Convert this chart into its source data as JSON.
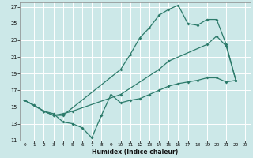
{
  "xlabel": "Humidex (Indice chaleur)",
  "bg_color": "#cce8e8",
  "grid_color": "#ffffff",
  "line_color": "#2d7b6b",
  "xlim": [
    -0.5,
    23.5
  ],
  "ylim": [
    11,
    27.5
  ],
  "yticks": [
    11,
    13,
    15,
    17,
    19,
    21,
    23,
    25,
    27
  ],
  "xticks": [
    0,
    1,
    2,
    3,
    4,
    5,
    6,
    7,
    8,
    9,
    10,
    11,
    12,
    13,
    14,
    15,
    16,
    17,
    18,
    19,
    20,
    21,
    22,
    23
  ],
  "line1_x": [
    0,
    1,
    2,
    3,
    4,
    10,
    11,
    12,
    13,
    14,
    15,
    16,
    17,
    18,
    19,
    20,
    21,
    22
  ],
  "line1_y": [
    15.8,
    15.2,
    14.5,
    14.0,
    14.0,
    19.5,
    21.3,
    23.3,
    24.5,
    26.0,
    26.7,
    27.2,
    25.0,
    24.8,
    25.5,
    25.5,
    22.5,
    18.2
  ],
  "line2_x": [
    0,
    2,
    3,
    4,
    5,
    10,
    14,
    15,
    19,
    20,
    21,
    22
  ],
  "line2_y": [
    15.8,
    14.5,
    14.0,
    14.2,
    14.5,
    16.5,
    19.5,
    20.5,
    22.5,
    23.5,
    22.3,
    18.2
  ],
  "line3_x": [
    0,
    1,
    2,
    3,
    4,
    5,
    6,
    7,
    8,
    9,
    10,
    11,
    12,
    13,
    14,
    15,
    16,
    17,
    18,
    19,
    20,
    21,
    22
  ],
  "line3_y": [
    15.8,
    15.2,
    14.5,
    14.2,
    13.2,
    13.0,
    12.5,
    11.3,
    14.0,
    16.5,
    15.5,
    15.8,
    16.0,
    16.5,
    17.0,
    17.5,
    17.8,
    18.0,
    18.2,
    18.5,
    18.5,
    18.0,
    18.2
  ]
}
